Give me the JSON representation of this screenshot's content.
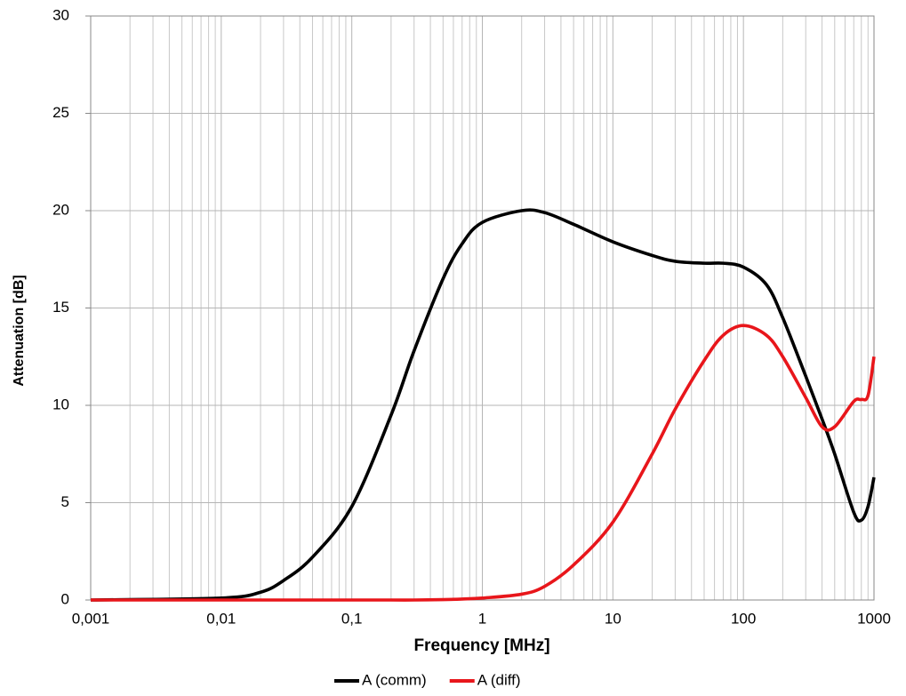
{
  "chart_data": {
    "type": "line",
    "x_label": "Frequency [MHz]",
    "y_label": "Attenuation [dB]",
    "x_scale": "log",
    "grid": true,
    "legend": "bottom",
    "x": [
      0.001,
      0.01,
      0.02,
      0.03,
      0.05,
      0.1,
      0.2,
      0.3,
      0.5,
      0.7,
      1,
      2,
      3,
      5,
      10,
      20,
      30,
      50,
      70,
      100,
      150,
      200,
      300,
      400,
      500,
      700,
      800,
      900,
      1000
    ],
    "series": [
      {
        "name": "A (comm)",
        "color": "#000000",
        "values": [
          0,
          0.1,
          0.4,
          1.0,
          2.2,
          4.8,
          9.5,
          12.8,
          16.5,
          18.3,
          19.4,
          20.0,
          19.9,
          19.3,
          18.4,
          17.7,
          17.4,
          17.3,
          17.3,
          17.1,
          16.2,
          14.5,
          11.5,
          9.3,
          7.5,
          4.5,
          4.1,
          4.8,
          6.3
        ]
      },
      {
        "name": "A (diff)",
        "color": "#e8161b",
        "values": [
          0,
          0,
          0,
          0,
          0,
          0,
          0,
          0,
          0.02,
          0.05,
          0.1,
          0.3,
          0.7,
          1.8,
          4.0,
          7.5,
          9.8,
          12.3,
          13.6,
          14.1,
          13.6,
          12.5,
          10.4,
          8.9,
          8.9,
          10.2,
          10.3,
          10.5,
          12.5
        ]
      }
    ],
    "xlim": [
      0.001,
      1000
    ],
    "xticks": [
      {
        "value": 0.001,
        "label": "0,001"
      },
      {
        "value": 0.01,
        "label": "0,01"
      },
      {
        "value": 0.1,
        "label": "0,1"
      },
      1,
      10,
      100,
      1000
    ],
    "ylim": [
      0,
      30
    ],
    "yticks": [
      0,
      5,
      10,
      15,
      20,
      25,
      30
    ]
  }
}
